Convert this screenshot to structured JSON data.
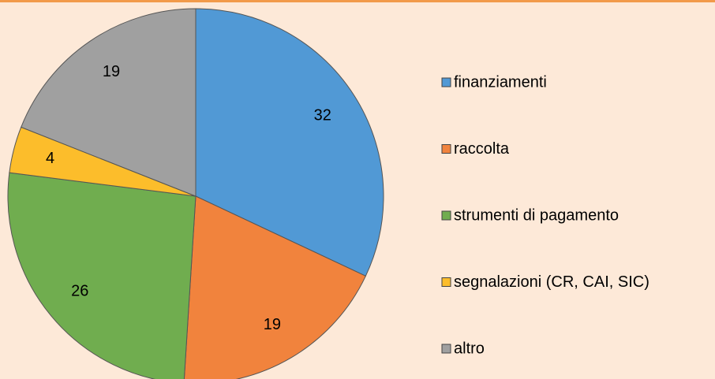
{
  "chart_data": {
    "type": "pie",
    "categories": [
      "finanziamenti",
      "raccolta",
      "strumenti di pagamento",
      "segnalazioni (CR, CAI, SIC)",
      "altro"
    ],
    "values": [
      32,
      19,
      26,
      4,
      19
    ],
    "colors": [
      "#5199d5",
      "#f1833d",
      "#70ad4f",
      "#fcbd2b",
      "#a0a0a0"
    ],
    "legend": "right"
  }
}
